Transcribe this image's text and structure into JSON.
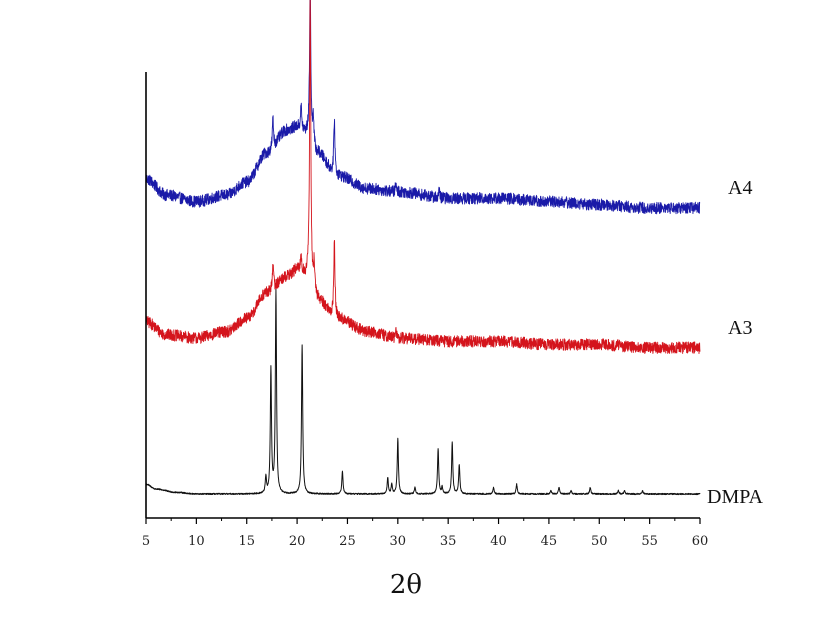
{
  "chart_data": {
    "type": "line",
    "xlabel": "2θ",
    "ylabel": "",
    "xlim": [
      5,
      60
    ],
    "xticks": [
      5,
      10,
      15,
      20,
      25,
      30,
      35,
      40,
      45,
      50,
      55,
      60
    ],
    "xtick_labels": [
      "5",
      "10",
      "15",
      "20",
      "25",
      "30",
      "35",
      "40",
      "45",
      "50",
      "55",
      "60"
    ],
    "y_axis_ticks": false,
    "legend": "none",
    "series": [
      {
        "name": "A4",
        "color": "#1a1aa8",
        "noise": 0.018,
        "baseline": [
          [
            5,
            0.97
          ],
          [
            7,
            0.92
          ],
          [
            10,
            0.9
          ],
          [
            13,
            0.92
          ],
          [
            15,
            0.96
          ],
          [
            17,
            1.05
          ],
          [
            19,
            1.12
          ],
          [
            20,
            1.13
          ],
          [
            21,
            1.11
          ],
          [
            22,
            1.05
          ],
          [
            24,
            0.98
          ],
          [
            27,
            0.94
          ],
          [
            30,
            0.93
          ],
          [
            35,
            0.91
          ],
          [
            40,
            0.91
          ],
          [
            45,
            0.9
          ],
          [
            50,
            0.89
          ],
          [
            55,
            0.88
          ],
          [
            60,
            0.88
          ]
        ],
        "peaks": [
          {
            "x": 17.6,
            "h": 0.09
          },
          {
            "x": 20.4,
            "h": 0.07
          },
          {
            "x": 21.3,
            "h": 0.48
          },
          {
            "x": 21.6,
            "h": 0.09
          },
          {
            "x": 23.7,
            "h": 0.17
          },
          {
            "x": 29.8,
            "h": 0.02
          },
          {
            "x": 34.1,
            "h": 0.02
          }
        ]
      },
      {
        "name": "A3",
        "color": "#d4141c",
        "noise": 0.018,
        "baseline": [
          [
            5,
            0.53
          ],
          [
            7,
            0.49
          ],
          [
            10,
            0.48
          ],
          [
            13,
            0.5
          ],
          [
            15,
            0.54
          ],
          [
            17,
            0.62
          ],
          [
            19,
            0.67
          ],
          [
            20,
            0.69
          ],
          [
            21,
            0.67
          ],
          [
            22,
            0.6
          ],
          [
            24,
            0.54
          ],
          [
            27,
            0.5
          ],
          [
            30,
            0.48
          ],
          [
            35,
            0.47
          ],
          [
            40,
            0.47
          ],
          [
            45,
            0.46
          ],
          [
            50,
            0.46
          ],
          [
            55,
            0.45
          ],
          [
            60,
            0.45
          ]
        ],
        "peaks": [
          {
            "x": 17.6,
            "h": 0.08
          },
          {
            "x": 20.4,
            "h": 0.05
          },
          {
            "x": 21.3,
            "h": 0.88
          },
          {
            "x": 21.7,
            "h": 0.09
          },
          {
            "x": 23.7,
            "h": 0.24
          },
          {
            "x": 29.8,
            "h": 0.02
          }
        ]
      },
      {
        "name": "DMPA",
        "color": "#111111",
        "noise": 0.002,
        "baseline": [
          [
            5,
            0.03
          ],
          [
            6,
            0.015
          ],
          [
            8,
            0.005
          ],
          [
            10,
            0.0
          ],
          [
            60,
            0.0
          ]
        ],
        "peaks": [
          {
            "x": 16.9,
            "h": 0.05
          },
          {
            "x": 17.4,
            "h": 0.38
          },
          {
            "x": 17.9,
            "h": 0.62
          },
          {
            "x": 20.5,
            "h": 0.46
          },
          {
            "x": 24.5,
            "h": 0.07
          },
          {
            "x": 29.0,
            "h": 0.05
          },
          {
            "x": 29.4,
            "h": 0.03
          },
          {
            "x": 30.0,
            "h": 0.17
          },
          {
            "x": 31.7,
            "h": 0.02
          },
          {
            "x": 34.0,
            "h": 0.14
          },
          {
            "x": 34.4,
            "h": 0.02
          },
          {
            "x": 35.4,
            "h": 0.16
          },
          {
            "x": 36.1,
            "h": 0.09
          },
          {
            "x": 39.5,
            "h": 0.02
          },
          {
            "x": 41.8,
            "h": 0.03
          },
          {
            "x": 45.2,
            "h": 0.01
          },
          {
            "x": 46.0,
            "h": 0.02
          },
          {
            "x": 47.2,
            "h": 0.01
          },
          {
            "x": 49.1,
            "h": 0.02
          },
          {
            "x": 51.9,
            "h": 0.01
          },
          {
            "x": 52.5,
            "h": 0.01
          },
          {
            "x": 54.3,
            "h": 0.01
          }
        ]
      }
    ]
  }
}
